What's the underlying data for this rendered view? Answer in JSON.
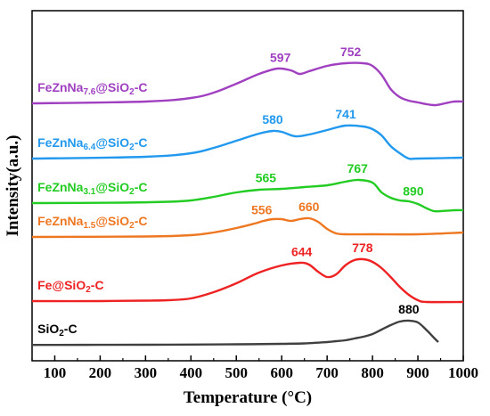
{
  "chart_data": {
    "type": "line",
    "xlabel": "Temperature (°C)",
    "ylabel": "Intensity(a.u.)",
    "xlim": [
      50,
      1000
    ],
    "xticks": [
      100,
      200,
      300,
      400,
      500,
      600,
      700,
      800,
      900,
      1000
    ],
    "yticks": [],
    "grid": false,
    "legend": "none",
    "series": [
      {
        "label_parts": [
          [
            "SiO",
            "normal"
          ],
          [
            "2",
            "sub"
          ],
          [
            "-C",
            "normal"
          ]
        ],
        "color": "#404040",
        "offset": 0.0,
        "points": [
          [
            50,
            0.008
          ],
          [
            100,
            0.008
          ],
          [
            200,
            0.009
          ],
          [
            300,
            0.01
          ],
          [
            400,
            0.012
          ],
          [
            500,
            0.015
          ],
          [
            600,
            0.02
          ],
          [
            650,
            0.025
          ],
          [
            700,
            0.04
          ],
          [
            720,
            0.05
          ],
          [
            740,
            0.06
          ],
          [
            760,
            0.08
          ],
          [
            780,
            0.1
          ],
          [
            800,
            0.13
          ],
          [
            820,
            0.18
          ],
          [
            840,
            0.23
          ],
          [
            860,
            0.27
          ],
          [
            880,
            0.28
          ],
          [
            900,
            0.26
          ],
          [
            920,
            0.17
          ],
          [
            935,
            0.09
          ],
          [
            945,
            0.04
          ]
        ],
        "peaks": [
          {
            "x": 880,
            "label": "880"
          }
        ]
      },
      {
        "label_parts": [
          [
            "Fe@SiO",
            "normal"
          ],
          [
            "2",
            "sub"
          ],
          [
            "-C",
            "normal"
          ]
        ],
        "color": "#ee2222",
        "offset": 0.48,
        "points": [
          [
            50,
            0.02
          ],
          [
            200,
            0.02
          ],
          [
            300,
            0.025
          ],
          [
            350,
            0.03
          ],
          [
            400,
            0.05
          ],
          [
            450,
            0.12
          ],
          [
            500,
            0.22
          ],
          [
            550,
            0.34
          ],
          [
            600,
            0.42
          ],
          [
            640,
            0.45
          ],
          [
            660,
            0.43
          ],
          [
            680,
            0.35
          ],
          [
            700,
            0.29
          ],
          [
            720,
            0.32
          ],
          [
            740,
            0.42
          ],
          [
            760,
            0.48
          ],
          [
            780,
            0.49
          ],
          [
            800,
            0.46
          ],
          [
            820,
            0.39
          ],
          [
            840,
            0.29
          ],
          [
            860,
            0.18
          ],
          [
            880,
            0.09
          ],
          [
            900,
            0.03
          ],
          [
            920,
            0.01
          ],
          [
            1000,
            0.01
          ]
        ],
        "peaks": [
          {
            "x": 644,
            "label": "644"
          },
          {
            "x": 778,
            "label": "778"
          }
        ]
      },
      {
        "label_parts": [
          [
            "FeZnNa",
            "normal"
          ],
          [
            "1.5",
            "sub"
          ],
          [
            "@SiO",
            "normal"
          ],
          [
            "2",
            "sub"
          ],
          [
            "-C",
            "normal"
          ]
        ],
        "color": "#ee7722",
        "offset": 1.22,
        "points": [
          [
            50,
            0.0
          ],
          [
            300,
            0.005
          ],
          [
            400,
            0.02
          ],
          [
            450,
            0.05
          ],
          [
            500,
            0.1
          ],
          [
            540,
            0.15
          ],
          [
            560,
            0.18
          ],
          [
            580,
            0.2
          ],
          [
            600,
            0.2
          ],
          [
            620,
            0.18
          ],
          [
            640,
            0.2
          ],
          [
            660,
            0.21
          ],
          [
            680,
            0.17
          ],
          [
            700,
            0.09
          ],
          [
            720,
            0.04
          ],
          [
            740,
            0.03
          ],
          [
            800,
            0.03
          ],
          [
            900,
            0.03
          ],
          [
            1000,
            0.05
          ]
        ],
        "peaks": [
          {
            "x": 556,
            "label": "556"
          },
          {
            "x": 660,
            "label": "660"
          }
        ]
      },
      {
        "label_parts": [
          [
            "FeZnNa",
            "normal"
          ],
          [
            "3.1",
            "sub"
          ],
          [
            "@SiO",
            "normal"
          ],
          [
            "2",
            "sub"
          ],
          [
            "-C",
            "normal"
          ]
        ],
        "color": "#22cc22",
        "offset": 1.6,
        "points": [
          [
            50,
            0.0
          ],
          [
            250,
            0.005
          ],
          [
            350,
            0.015
          ],
          [
            400,
            0.03
          ],
          [
            450,
            0.07
          ],
          [
            500,
            0.12
          ],
          [
            550,
            0.15
          ],
          [
            600,
            0.16
          ],
          [
            650,
            0.18
          ],
          [
            700,
            0.2
          ],
          [
            740,
            0.24
          ],
          [
            770,
            0.26
          ],
          [
            800,
            0.23
          ],
          [
            820,
            0.12
          ],
          [
            840,
            0.06
          ],
          [
            860,
            0.03
          ],
          [
            880,
            0.02
          ],
          [
            900,
            -0.01
          ],
          [
            920,
            -0.06
          ],
          [
            935,
            -0.09
          ],
          [
            950,
            -0.09
          ],
          [
            980,
            -0.08
          ],
          [
            1000,
            -0.08
          ]
        ],
        "peaks": [
          {
            "x": 565,
            "label": "565"
          },
          {
            "x": 767,
            "label": "767"
          },
          {
            "x": 890,
            "label": "890"
          }
        ]
      },
      {
        "label_parts": [
          [
            "FeZnNa",
            "normal"
          ],
          [
            "6.4",
            "sub"
          ],
          [
            "@SiO",
            "normal"
          ],
          [
            "2",
            "sub"
          ],
          [
            "-C",
            "normal"
          ]
        ],
        "color": "#2299ee",
        "offset": 2.1,
        "points": [
          [
            50,
            0.0
          ],
          [
            300,
            0.02
          ],
          [
            400,
            0.06
          ],
          [
            450,
            0.12
          ],
          [
            500,
            0.2
          ],
          [
            550,
            0.28
          ],
          [
            580,
            0.31
          ],
          [
            600,
            0.3
          ],
          [
            630,
            0.25
          ],
          [
            660,
            0.27
          ],
          [
            700,
            0.32
          ],
          [
            740,
            0.37
          ],
          [
            780,
            0.36
          ],
          [
            800,
            0.33
          ],
          [
            820,
            0.26
          ],
          [
            840,
            0.14
          ],
          [
            860,
            0.06
          ],
          [
            880,
            0.0
          ],
          [
            900,
            0.0
          ],
          [
            1000,
            0.01
          ]
        ],
        "peaks": [
          {
            "x": 580,
            "label": "580"
          },
          {
            "x": 741,
            "label": "741"
          }
        ]
      },
      {
        "label_parts": [
          [
            "FeZnNa",
            "normal"
          ],
          [
            "7.6",
            "sub"
          ],
          [
            "@SiO",
            "normal"
          ],
          [
            "2",
            "sub"
          ],
          [
            "-C",
            "normal"
          ]
        ],
        "color": "#a040c0",
        "offset": 2.72,
        "points": [
          [
            50,
            0.0
          ],
          [
            300,
            0.02
          ],
          [
            400,
            0.06
          ],
          [
            450,
            0.12
          ],
          [
            500,
            0.22
          ],
          [
            550,
            0.33
          ],
          [
            590,
            0.39
          ],
          [
            620,
            0.37
          ],
          [
            640,
            0.33
          ],
          [
            660,
            0.36
          ],
          [
            700,
            0.42
          ],
          [
            740,
            0.45
          ],
          [
            780,
            0.45
          ],
          [
            800,
            0.42
          ],
          [
            820,
            0.32
          ],
          [
            840,
            0.16
          ],
          [
            860,
            0.07
          ],
          [
            880,
            0.03
          ],
          [
            900,
            0.01
          ],
          [
            920,
            -0.01
          ],
          [
            940,
            -0.02
          ],
          [
            960,
            0.0
          ],
          [
            980,
            0.02
          ],
          [
            1000,
            0.02
          ]
        ],
        "peaks": [
          {
            "x": 597,
            "label": "597"
          },
          {
            "x": 752,
            "label": "752"
          }
        ]
      }
    ]
  }
}
